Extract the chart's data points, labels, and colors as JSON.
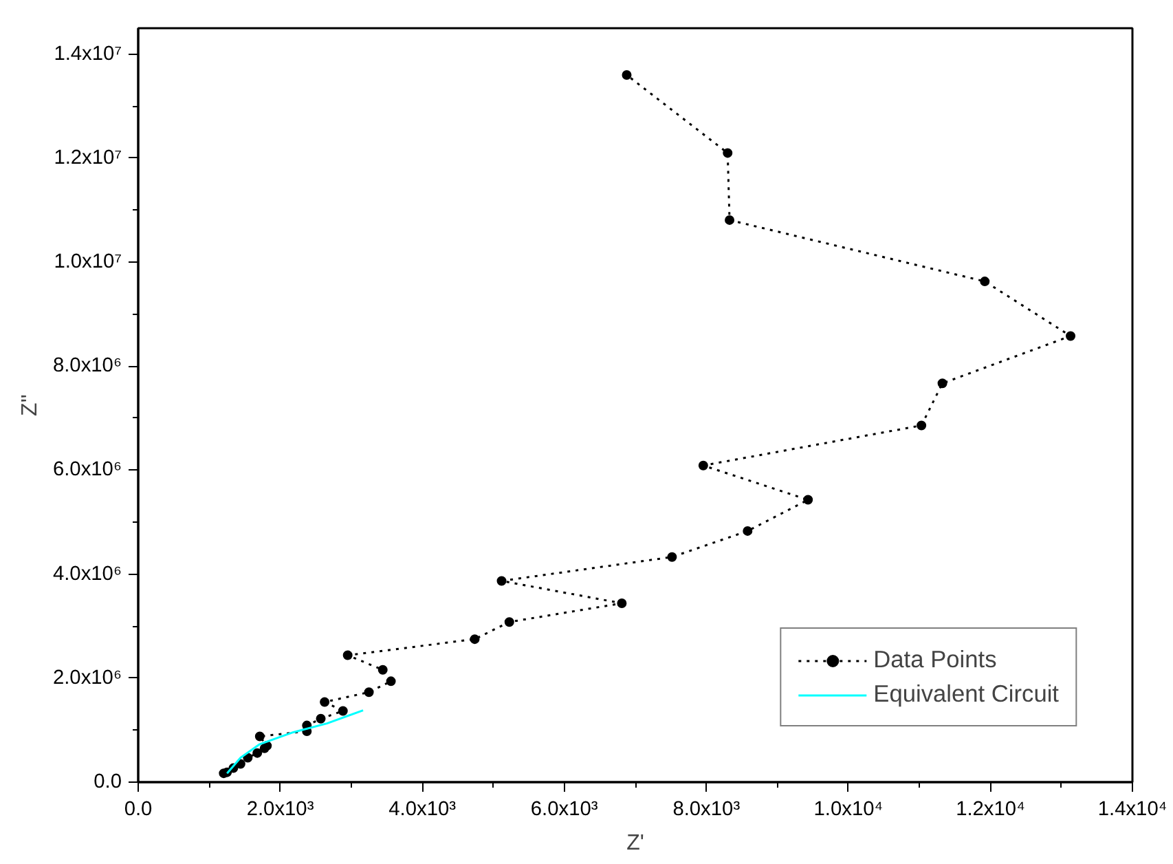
{
  "chart_data": {
    "type": "line",
    "xlabel": "Z'",
    "ylabel": "Z''",
    "xlim": [
      0,
      14000
    ],
    "ylim": [
      0,
      14500000
    ],
    "xticks": [
      {
        "value": 0,
        "label": "0.0"
      },
      {
        "value": 2000,
        "label": "2.0x10³"
      },
      {
        "value": 4000,
        "label": "4.0x10³"
      },
      {
        "value": 6000,
        "label": "6.0x10³"
      },
      {
        "value": 8000,
        "label": "8.0x10³"
      },
      {
        "value": 10000,
        "label": "1.0x10⁴"
      },
      {
        "value": 12000,
        "label": "1.2x10⁴"
      },
      {
        "value": 14000,
        "label": "1.4x10⁴"
      }
    ],
    "yticks": [
      {
        "value": 0,
        "label": "0.0"
      },
      {
        "value": 2000000,
        "label": "2.0x10⁶"
      },
      {
        "value": 4000000,
        "label": "4.0x10⁶"
      },
      {
        "value": 6000000,
        "label": "6.0x10⁶"
      },
      {
        "value": 8000000,
        "label": "8.0x10⁶"
      },
      {
        "value": 10000000,
        "label": "1.0x10⁷"
      },
      {
        "value": 12000000,
        "label": "1.2x10⁷"
      },
      {
        "value": 14000000,
        "label": "1.4x10⁷"
      }
    ],
    "grid": false,
    "legend": "bottom right",
    "series": [
      {
        "name": "Data Points",
        "color": "#000000",
        "marker": "circle",
        "line_style": "dotted",
        "x": [
          1204,
          1251,
          1340,
          1441,
          1543,
          1677,
          1779,
          1813,
          1712,
          2375,
          2375,
          2571,
          2883,
          2625,
          3249,
          3559,
          3444,
          2950,
          4739,
          5226,
          6810,
          5117,
          7517,
          8581,
          9432,
          7957,
          11029,
          11324,
          13129,
          11921,
          8327,
          8300,
          6879
        ],
        "values": [
          170000,
          190000,
          270000,
          350000,
          470000,
          560000,
          650000,
          700000,
          880000,
          980000,
          1090000,
          1220000,
          1370000,
          1540000,
          1730000,
          1940000,
          2160000,
          2440000,
          2750000,
          3080000,
          3440000,
          3870000,
          4330000,
          4830000,
          5430000,
          6090000,
          6860000,
          7670000,
          8580000,
          9630000,
          10810000,
          12100000,
          13600000
        ]
      },
      {
        "name": "Equivalent Circuit",
        "color": "#00ffff",
        "marker": "none",
        "line_style": "solid",
        "x": [
          1251,
          1441,
          1712,
          2185,
          2659,
          3167
        ],
        "values": [
          170000,
          470000,
          730000,
          960000,
          1130000,
          1380000
        ]
      }
    ]
  }
}
